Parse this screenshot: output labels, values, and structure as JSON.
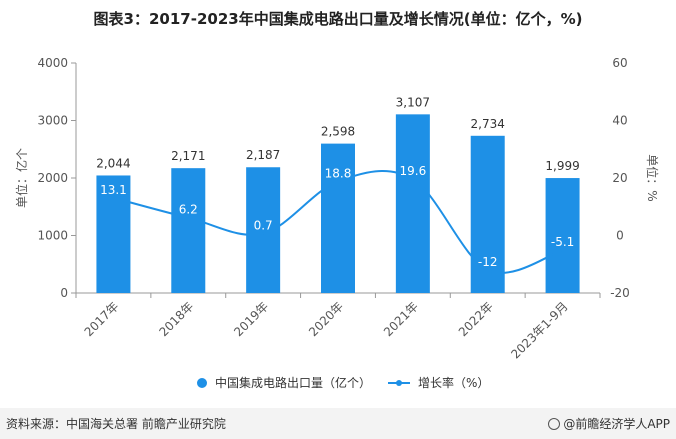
{
  "title": "图表3：2017-2023年中国集成电路出口量及增长情况(单位：亿个，%)",
  "chart_data": {
    "type": "bar",
    "categories": [
      "2017年",
      "2018年",
      "2019年",
      "2020年",
      "2021年",
      "2022年",
      "2023年1-9月"
    ],
    "series": [
      {
        "name": "中国集成电路出口量（亿个）",
        "type": "bar",
        "axis": "left",
        "values": [
          2044,
          2171,
          2187,
          2598,
          3107,
          2734,
          1999
        ],
        "labels": [
          "2,044",
          "2,171",
          "2,187",
          "2,598",
          "3,107",
          "2,734",
          "1,999"
        ]
      },
      {
        "name": "增长率（%）",
        "type": "line",
        "axis": "right",
        "values": [
          13.1,
          6.2,
          0.7,
          18.8,
          19.6,
          -12,
          -5.1
        ],
        "labels": [
          "13.1",
          "6.2",
          "0.7",
          "18.8",
          "19.6",
          "-12",
          "-5.1"
        ]
      }
    ],
    "ylabel_left": "单位：亿个",
    "ylabel_right": "单位：%",
    "ylim_left": [
      0,
      4000
    ],
    "ylim_right": [
      -20,
      60
    ],
    "yticks_left": [
      "0",
      "1000",
      "2000",
      "3000",
      "4000"
    ],
    "yticks_right": [
      "-20",
      "0",
      "20",
      "40",
      "60"
    ],
    "colors": {
      "bar": "#1e90e6",
      "line": "#1e90e6",
      "bar_label": "#333333",
      "line_label": "#ffffff"
    }
  },
  "legend": {
    "bar_label": "中国集成电路出口量（亿个）",
    "line_label": "增长率（%）"
  },
  "footer": {
    "source": "资料来源：中国海关总署 前瞻产业研究院",
    "brand": "@前瞻经济学人APP"
  }
}
